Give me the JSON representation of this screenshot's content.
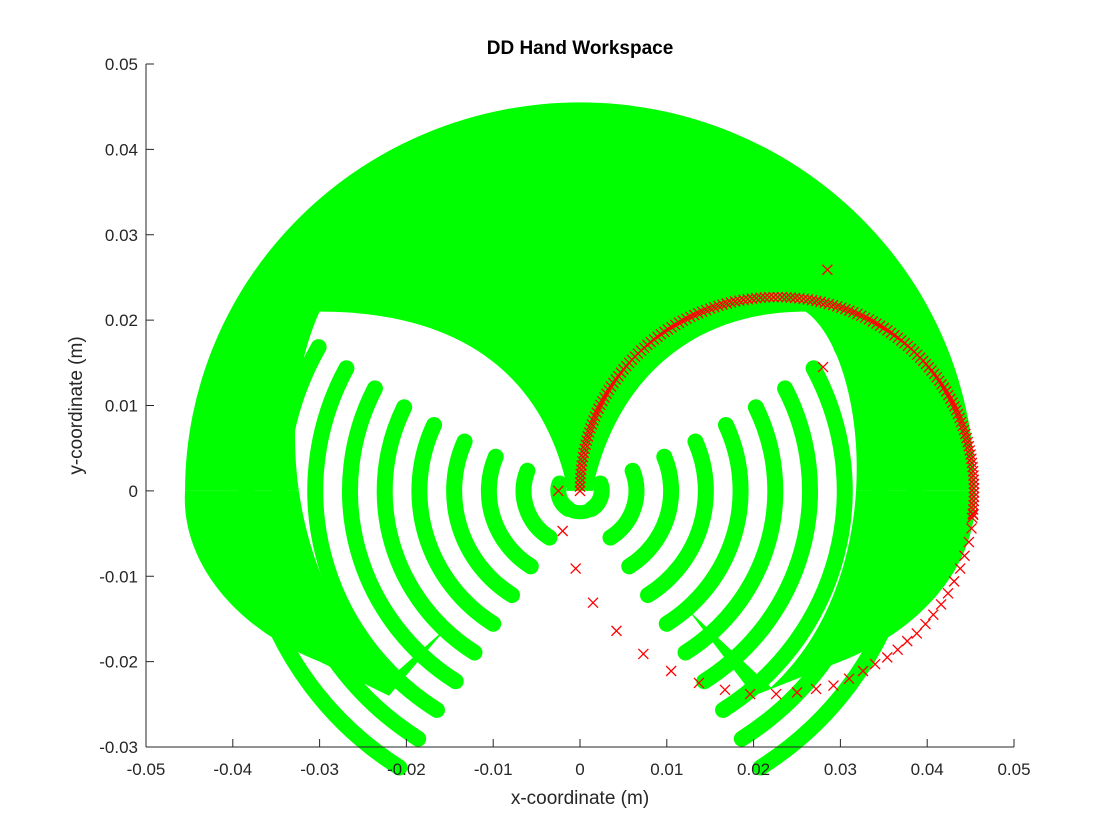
{
  "chart_data": {
    "type": "scatter",
    "title": "DD Hand Workspace",
    "xlabel": "x-coordinate (m)",
    "ylabel": "y-coordinate (m)",
    "xlim": [
      -0.05,
      0.05
    ],
    "ylim": [
      -0.03,
      0.05
    ],
    "xticks": [
      "-0.05",
      "-0.04",
      "-0.03",
      "-0.02",
      "-0.01",
      "0",
      "0.01",
      "0.02",
      "0.03",
      "0.04",
      "0.05"
    ],
    "yticks": [
      "-0.03",
      "-0.02",
      "-0.01",
      "0",
      "0.01",
      "0.02",
      "0.03",
      "0.04",
      "0.05"
    ],
    "grid": false,
    "legend": "none",
    "series": [
      {
        "marker": "o",
        "color": "#00ff00",
        "description_of_region": "workspace circles",
        "outer_boundary_radius": 0.0455,
        "spiral_rings": [
          {
            "r": 0.0025,
            "gap_start": 0.0005
          },
          {
            "r": 0.0065
          },
          {
            "r": 0.0105
          },
          {
            "r": 0.0145
          },
          {
            "r": 0.0185
          },
          {
            "r": 0.0225
          },
          {
            "r": 0.0265
          },
          {
            "r": 0.0305
          },
          {
            "r": 0.0345
          },
          {
            "r": 0.0385
          }
        ]
      },
      {
        "marker": "x",
        "color": "#ff0000",
        "points": [
          [
            -0.0025,
            0.0
          ],
          [
            -0.002,
            -0.0047
          ],
          [
            -0.0005,
            -0.0091
          ],
          [
            0.0015,
            -0.0131
          ],
          [
            0.0042,
            -0.0164
          ],
          [
            0.0073,
            -0.0191
          ],
          [
            0.0105,
            -0.0211
          ],
          [
            0.0137,
            -0.0225
          ],
          [
            0.0167,
            -0.0233
          ],
          [
            0.0196,
            -0.0238
          ],
          [
            0.0226,
            -0.0238
          ],
          [
            0.025,
            -0.0236
          ],
          [
            0.0272,
            -0.0232
          ],
          [
            0.0292,
            -0.0228
          ],
          [
            0.031,
            -0.022
          ],
          [
            0.0326,
            -0.0211
          ],
          [
            0.034,
            -0.0203
          ],
          [
            0.0354,
            -0.0195
          ],
          [
            0.0366,
            -0.0186
          ],
          [
            0.0377,
            -0.0176
          ],
          [
            0.0388,
            -0.0167
          ],
          [
            0.0398,
            -0.0156
          ],
          [
            0.0407,
            -0.0145
          ],
          [
            0.0416,
            -0.0133
          ],
          [
            0.0424,
            -0.012
          ],
          [
            0.0431,
            -0.0106
          ],
          [
            0.0438,
            -0.0091
          ],
          [
            0.0443,
            -0.0076
          ],
          [
            0.0448,
            -0.006
          ],
          [
            0.0451,
            -0.0044
          ],
          [
            0.0453,
            -0.0028
          ],
          [
            0.0285,
            0.0259
          ],
          [
            0.028,
            0.0145
          ]
        ],
        "dense_arc": {
          "cx": 0.0227,
          "cy": 0.0,
          "r": 0.0227,
          "start_deg": 180,
          "end_deg": -8
        }
      }
    ]
  }
}
